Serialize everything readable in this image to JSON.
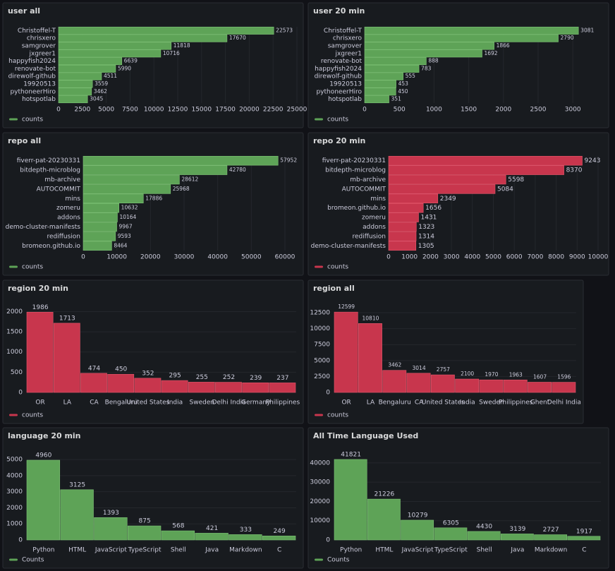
{
  "chart_data": [
    {
      "type": "hbar",
      "title": "user all",
      "color": "#5ea357",
      "legend": "counts",
      "categories": [
        "Christoffel-T",
        "chrisxero",
        "samgrover",
        "jxgreer1",
        "happyfish2024",
        "renovate-bot",
        "direwolf-github",
        "19920513",
        "pythoneerHiro",
        "hotspotlab"
      ],
      "values": [
        22573,
        17670,
        11818,
        10716,
        6639,
        5990,
        4511,
        3559,
        3462,
        3045
      ],
      "xlim": [
        0,
        25000
      ],
      "xticks": [
        0,
        2500,
        5000,
        7500,
        10000,
        12500,
        15000,
        17500,
        20000,
        22500,
        25000
      ]
    },
    {
      "type": "hbar",
      "title": "user 20 min",
      "color": "#5ea357",
      "legend": "counts",
      "categories": [
        "Christoffel-T",
        "chrisxero",
        "samgrover",
        "jxgreer1",
        "renovate-bot",
        "happyfish2024",
        "direwolf-github",
        "19920513",
        "pythoneerHiro",
        "hotspotlab"
      ],
      "values": [
        3081,
        2790,
        1866,
        1692,
        888,
        783,
        555,
        453,
        450,
        351
      ],
      "xlim": [
        0,
        3130
      ],
      "xticks": [
        0,
        500,
        1000,
        1500,
        2000,
        2500,
        3000
      ]
    },
    {
      "type": "hbar",
      "title": "repo all",
      "color": "#5ea357",
      "legend": "counts",
      "categories": [
        "fiverr-pat-20230331",
        "bitdepth-microblog",
        "mb-archive",
        "AUTOCOMMIT",
        "mins",
        "zomeru",
        "addons",
        "demo-cluster-manifests",
        "rediffusion",
        "bromeon.github.io"
      ],
      "values": [
        57952,
        42780,
        28612,
        25968,
        17886,
        10632,
        10164,
        9967,
        9593,
        8464
      ],
      "xlim": [
        0,
        60000
      ],
      "xticks": [
        0,
        10000,
        20000,
        30000,
        40000,
        50000,
        60000
      ]
    },
    {
      "type": "hbar",
      "title": "repo 20 min",
      "color": "#c8364d",
      "legend": "counts",
      "categories": [
        "fiverr-pat-20230331",
        "bitdepth-microblog",
        "mb-archive",
        "AUTOCOMMIT",
        "mins",
        "bromeon.github.io",
        "zomeru",
        "addons",
        "rediffusion",
        "demo-cluster-manifests"
      ],
      "values": [
        9243,
        8370,
        5598,
        5084,
        2349,
        1656,
        1431,
        1323,
        1314,
        1305
      ],
      "xlim": [
        0,
        10000
      ],
      "xticks": [
        0,
        1000,
        2000,
        3000,
        4000,
        5000,
        6000,
        7000,
        8000,
        9000,
        10000
      ]
    },
    {
      "type": "bar",
      "title": "region 20 min",
      "color": "#c8364d",
      "legend": "counts",
      "categories": [
        "OR",
        "LA",
        "CA",
        "Bengaluru",
        "United States",
        "India",
        "Sweden",
        "Delhi India",
        "Germany",
        "Philippines"
      ],
      "values": [
        1986,
        1713,
        474,
        450,
        352,
        295,
        255,
        252,
        239,
        237
      ],
      "ylim": [
        0,
        2200
      ],
      "yticks": [
        0,
        500,
        1000,
        1500,
        2000
      ]
    },
    {
      "type": "bar",
      "title": "region all",
      "color": "#c8364d",
      "legend": "counts",
      "categories": [
        "OR",
        "LA",
        "Bengaluru",
        "CA",
        "United States",
        "India",
        "Sweden",
        "Philippines",
        "Ghent",
        "Delhi India"
      ],
      "values": [
        12599,
        10810,
        3462,
        3014,
        2757,
        2100,
        1970,
        1963,
        1607,
        1596
      ],
      "ylim": [
        0,
        13500
      ],
      "yticks": [
        0,
        2500,
        5000,
        7500,
        10000,
        12500
      ]
    },
    {
      "type": "bar",
      "title": "language 20 min",
      "color": "#5ea357",
      "legend": "Counts",
      "categories": [
        "Python",
        "HTML",
        "JavaScript",
        "TypeScript",
        "Shell",
        "Java",
        "Markdown",
        "C"
      ],
      "values": [
        4960,
        3125,
        1393,
        875,
        568,
        421,
        333,
        249
      ],
      "ylim": [
        0,
        5400
      ],
      "yticks": [
        0,
        1000,
        2000,
        3000,
        4000,
        5000
      ]
    },
    {
      "type": "bar",
      "title": "All Time Language Used",
      "color": "#5ea357",
      "legend": "Counts",
      "categories": [
        "Python",
        "HTML",
        "JavaScript",
        "TypeScript",
        "Shell",
        "Java",
        "Markdown",
        "C"
      ],
      "values": [
        41821,
        21226,
        10279,
        6305,
        4430,
        3139,
        2727,
        1917
      ],
      "ylim": [
        0,
        44000
      ],
      "yticks": [
        0,
        10000,
        20000,
        30000,
        40000
      ]
    }
  ]
}
